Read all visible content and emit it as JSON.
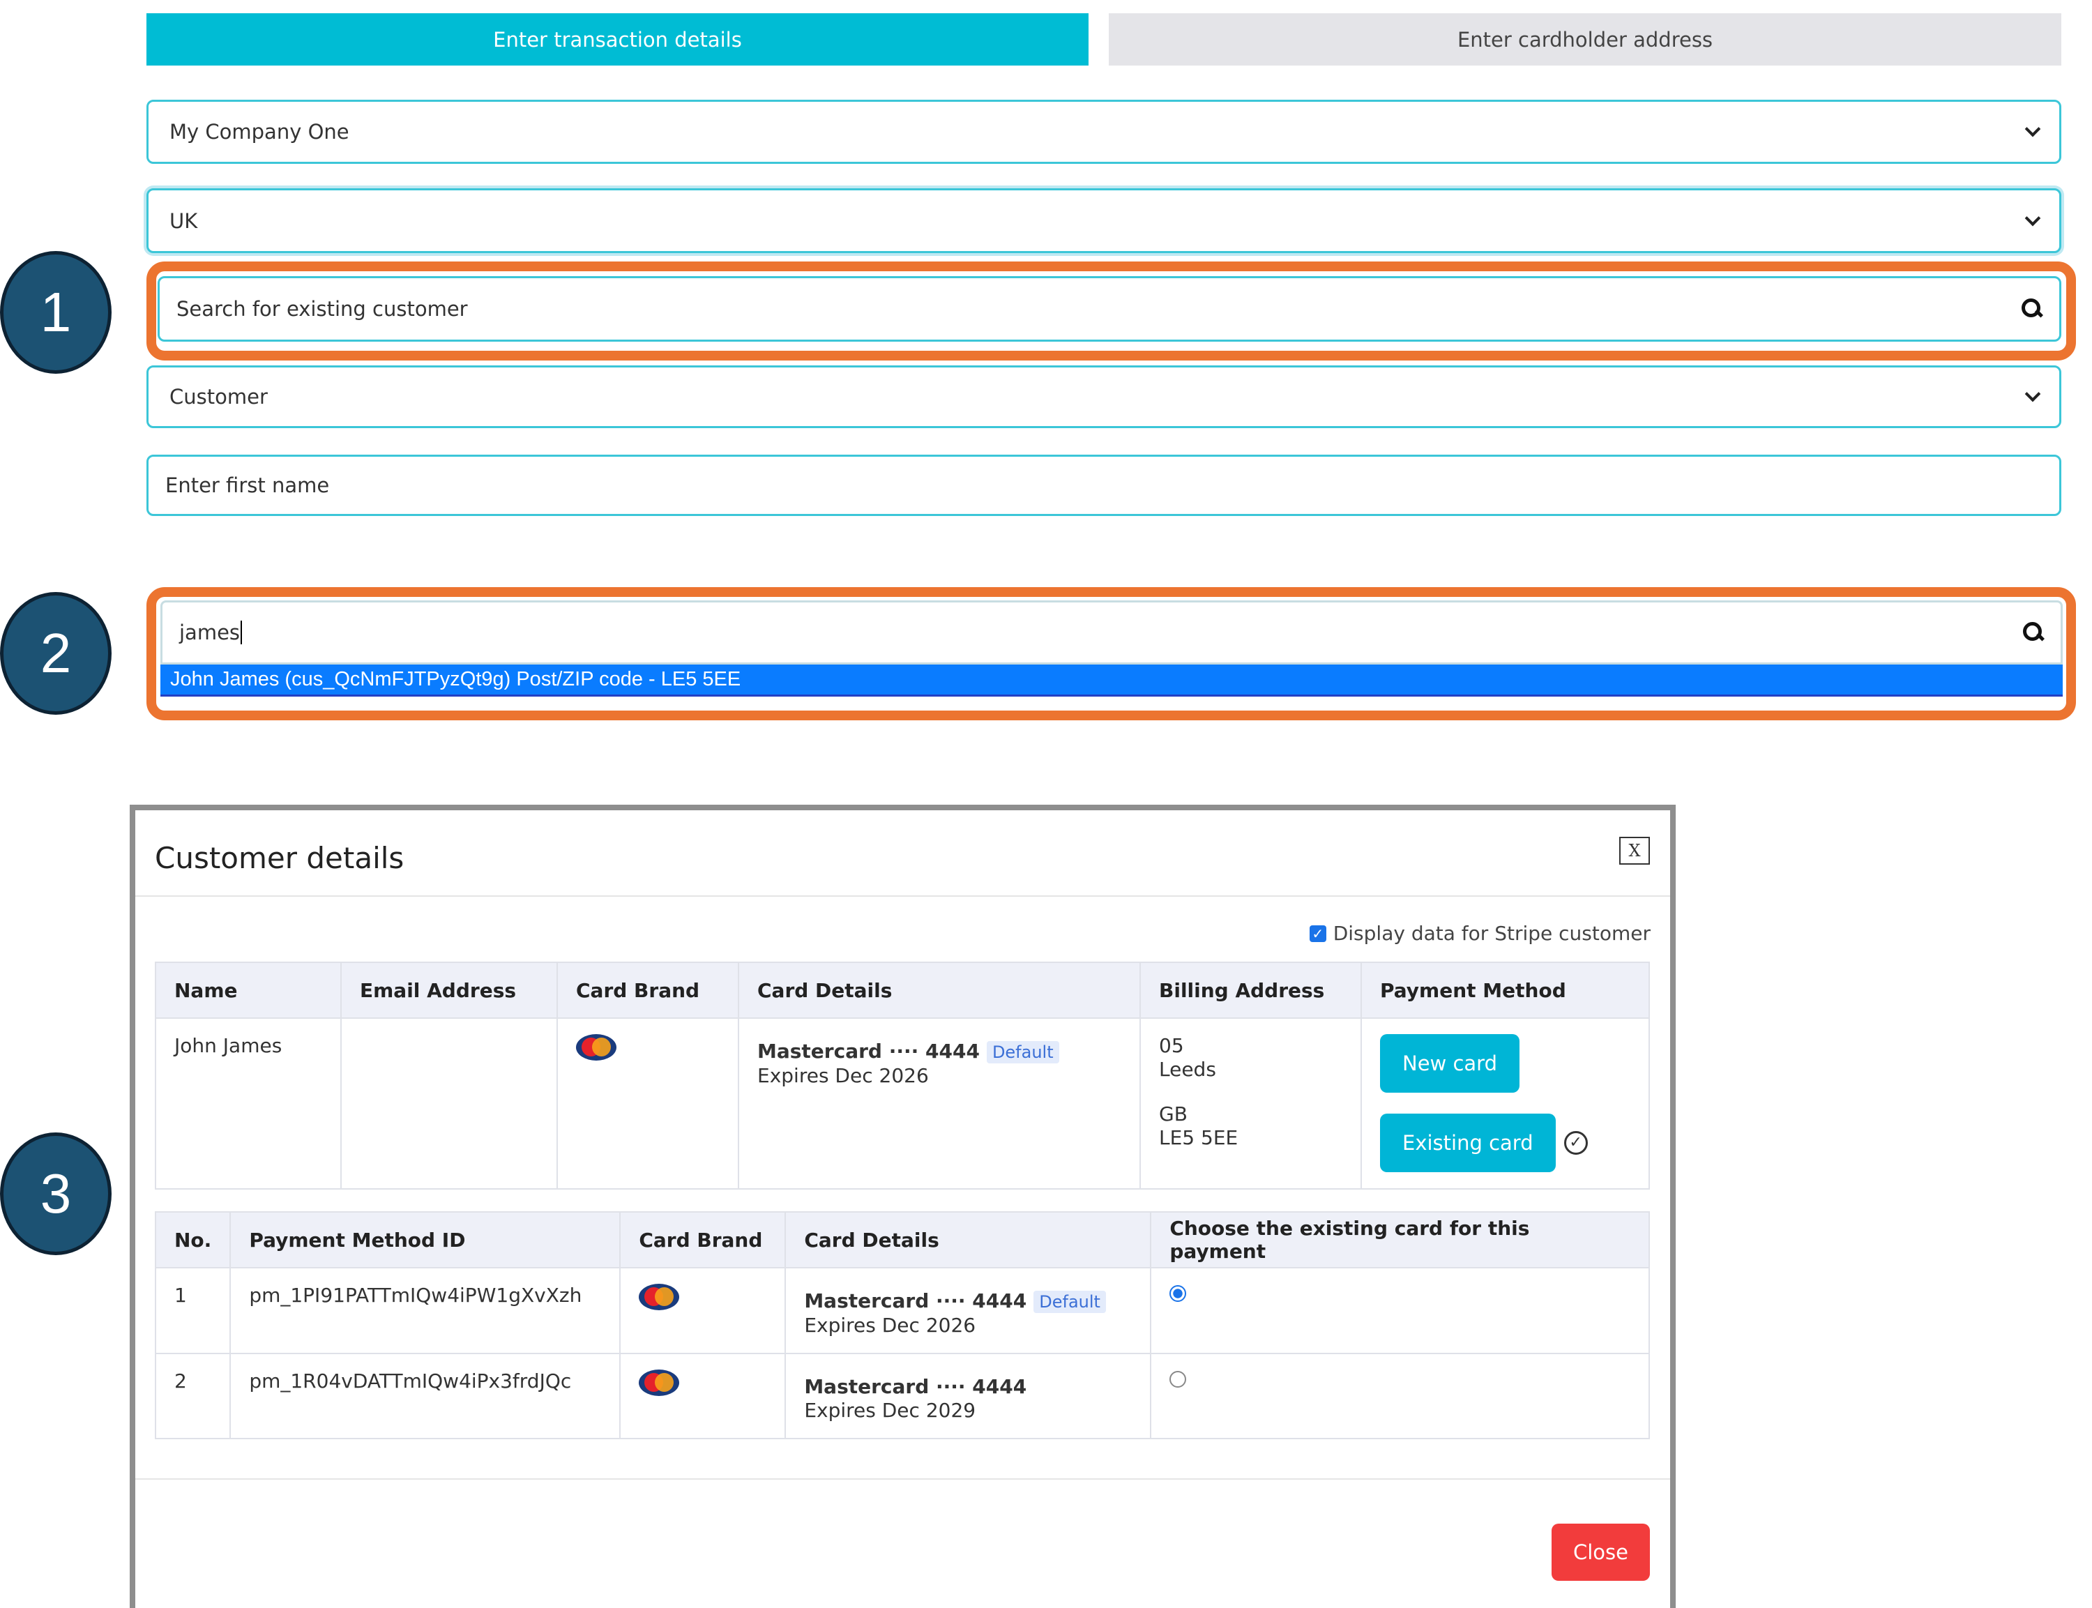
{
  "tabs": [
    {
      "label": "Enter transaction details",
      "active": true
    },
    {
      "label": "Enter cardholder address",
      "active": false
    }
  ],
  "form": {
    "company": "My Company One",
    "country": "UK",
    "search_placeholder": "Search for existing customer",
    "customer_type": "Customer",
    "first_name_placeholder": "Enter first name",
    "search_value": "james",
    "suggestion": "John James (cus_QcNmFJTPyzQt9g) Post/ZIP code - LE5 5EE"
  },
  "steps": [
    "1",
    "2",
    "3"
  ],
  "modal": {
    "title": "Customer details",
    "close_x": "X",
    "display_stripe_label": "Display data for Stripe customer",
    "customer_table": {
      "headers": [
        "Name",
        "Email Address",
        "Card Brand",
        "Card Details",
        "Billing Address",
        "Payment Method"
      ],
      "row": {
        "name": "John James",
        "email": "",
        "card_brand": "mastercard",
        "card_title": "Mastercard ···· 4444",
        "badge": "Default",
        "expires": "Expires Dec 2026",
        "address": [
          "05",
          "Leeds",
          "GB",
          "LE5 5EE"
        ],
        "new_card": "New card",
        "existing_card": "Existing card"
      }
    },
    "cards_table": {
      "headers": [
        "No.",
        "Payment Method ID",
        "Card Brand",
        "Card Details",
        "Choose the existing card for this payment"
      ],
      "rows": [
        {
          "no": "1",
          "id": "pm_1PI91PATTmIQw4iPW1gXvXzh",
          "title": "Mastercard ···· 4444",
          "badge": "Default",
          "expires": "Expires Dec 2026",
          "selected": true
        },
        {
          "no": "2",
          "id": "pm_1R04vDATTmIQw4iPx3frdJQc",
          "title": "Mastercard ···· 4444",
          "badge": "",
          "expires": "Expires Dec 2029",
          "selected": false
        }
      ]
    },
    "close_button": "Close"
  },
  "colors": {
    "accent": "#00bcd4",
    "highlight": "#ec7430",
    "selection": "#0a7cff",
    "danger": "#f23c3c",
    "step": "#1c5273"
  }
}
